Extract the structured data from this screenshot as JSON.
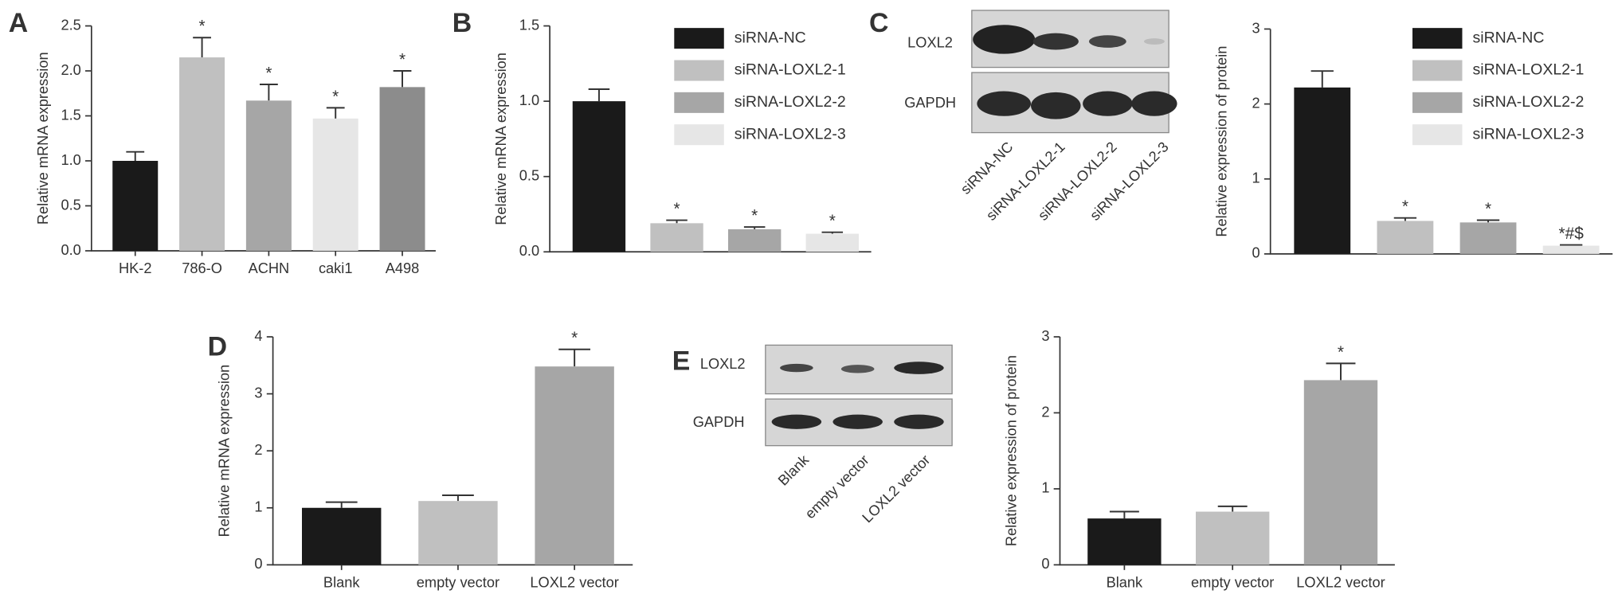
{
  "panel_labels": [
    "A",
    "B",
    "C",
    "D",
    "E"
  ],
  "blots": [
    {
      "rows": [
        "LOXL2",
        "GAPDH"
      ],
      "lanes": [
        "siRNA-NC",
        "siRNA-LOXL2-1",
        "siRNA-LOXL2-2",
        "siRNA-LOXL2-3"
      ]
    },
    {
      "rows": [
        "LOXL2",
        "GAPDH"
      ],
      "lanes": [
        "Blank",
        "empty vector",
        "LOXL2 vector"
      ]
    }
  ],
  "chart_data": [
    {
      "type": "bar",
      "ylabel": "Relative mRNA expression",
      "categories": [
        "HK-2",
        "786-O",
        "ACHN",
        "caki1",
        "A498"
      ],
      "values": [
        1.0,
        2.15,
        1.67,
        1.47,
        1.82
      ],
      "errors": [
        0.1,
        0.22,
        0.18,
        0.12,
        0.18
      ],
      "annotations": [
        null,
        "*",
        "*",
        "*",
        "*"
      ],
      "colors": [
        "#1a1a1a",
        "#c0c0c0",
        "#a6a6a6",
        "#e6e6e6",
        "#8c8c8c"
      ],
      "ylim": [
        0,
        2.5
      ],
      "yticks": [
        {
          "value": 0,
          "label": "0.0"
        },
        0.5,
        {
          "value": 1,
          "label": "1.0"
        },
        1.5,
        {
          "value": 2,
          "label": "2.0"
        },
        2.5
      ]
    },
    {
      "type": "bar",
      "ylabel": "Relative mRNA expression",
      "categories": [
        "siRNA-NC",
        "siRNA-LOXL2-1",
        "siRNA-LOXL2-2",
        "siRNA-LOXL2-3"
      ],
      "values": [
        1.0,
        0.19,
        0.15,
        0.12
      ],
      "errors": [
        0.08,
        0.02,
        0.015,
        0.01
      ],
      "annotations": [
        null,
        "*",
        "*",
        "*"
      ],
      "colors": [
        "#1a1a1a",
        "#c0c0c0",
        "#a6a6a6",
        "#e6e6e6"
      ],
      "legend": "upper right",
      "ylim": [
        0,
        1.5
      ],
      "yticks": [
        {
          "value": 0,
          "label": "0.0"
        },
        0.5,
        {
          "value": 1,
          "label": "1.0"
        },
        1.5
      ]
    },
    {
      "type": "bar",
      "ylabel": "Relative expression of protein",
      "categories": [
        "siRNA-NC",
        "siRNA-LOXL2-1",
        "siRNA-LOXL2-2",
        "siRNA-LOXL2-3"
      ],
      "values": [
        2.22,
        0.44,
        0.42,
        0.11
      ],
      "errors": [
        0.22,
        0.04,
        0.03,
        0.01
      ],
      "annotations": [
        null,
        "*",
        "*",
        "*#$"
      ],
      "colors": [
        "#1a1a1a",
        "#c0c0c0",
        "#a6a6a6",
        "#e6e6e6"
      ],
      "legend": "upper right",
      "ylim": [
        0,
        3
      ],
      "yticks": [
        0,
        1,
        2,
        3
      ]
    },
    {
      "type": "bar",
      "ylabel": "Relative mRNA expression",
      "categories": [
        "Blank",
        "empty vector",
        "LOXL2 vector"
      ],
      "values": [
        1.0,
        1.12,
        3.48
      ],
      "errors": [
        0.1,
        0.1,
        0.3
      ],
      "annotations": [
        null,
        null,
        "*"
      ],
      "colors": [
        "#1a1a1a",
        "#c0c0c0",
        "#a6a6a6"
      ],
      "ylim": [
        0,
        4
      ],
      "yticks": [
        0,
        1,
        2,
        3,
        4
      ]
    },
    {
      "type": "bar",
      "ylabel": "Relative expression of protein",
      "categories": [
        "Blank",
        "empty vector",
        "LOXL2 vector"
      ],
      "values": [
        0.61,
        0.7,
        2.43
      ],
      "errors": [
        0.09,
        0.07,
        0.22
      ],
      "annotations": [
        null,
        null,
        "*"
      ],
      "colors": [
        "#1a1a1a",
        "#c0c0c0",
        "#a6a6a6"
      ],
      "ylim": [
        0,
        3
      ],
      "yticks": [
        0,
        1,
        2,
        3
      ]
    }
  ]
}
